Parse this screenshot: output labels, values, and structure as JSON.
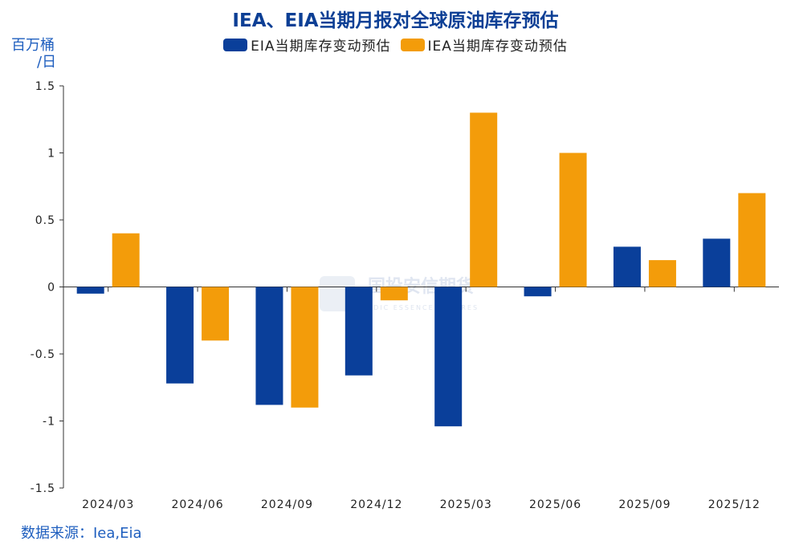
{
  "title": "IEA、EIA当期月报对全球原油库存预估",
  "unit_line1": "百万桶",
  "unit_line2": "/日",
  "source": "数据来源：Iea,Eia",
  "watermark": "国投安信期货",
  "watermark_sub": "SDIC ESSENCE FUTURES",
  "colors": {
    "EIA": "#0a3f9a",
    "IEA": "#f39c0a",
    "title": "#0c3f95",
    "axis": "#333333"
  },
  "chart_data": {
    "type": "bar",
    "title": "IEA、EIA当期月报对全球原油库存预估",
    "ylabel": "百万桶/日",
    "ylim": [
      -1.5,
      1.5
    ],
    "yticks": [
      1.5,
      1,
      0.5,
      0,
      -0.5,
      -1,
      -1.5
    ],
    "ytick_labels": [
      "1.5",
      "1",
      "0.5",
      "0",
      "-0.5",
      "-1",
      "-1.5"
    ],
    "categories": [
      "2024/03",
      "2024/06",
      "2024/09",
      "2024/12",
      "2025/03",
      "2025/06",
      "2025/09",
      "2025/12"
    ],
    "series": [
      {
        "name": "EIA当期库存变动预估",
        "color": "#0a3f9a",
        "values": [
          -0.05,
          -0.72,
          -0.88,
          -0.66,
          -1.04,
          -0.07,
          0.3,
          0.36
        ]
      },
      {
        "name": "IEA当期库存变动预估",
        "color": "#f39c0a",
        "values": [
          0.4,
          -0.4,
          -0.9,
          -0.1,
          1.3,
          1.0,
          0.2,
          0.7
        ]
      }
    ],
    "grid": false,
    "legend_position": "top-center"
  }
}
